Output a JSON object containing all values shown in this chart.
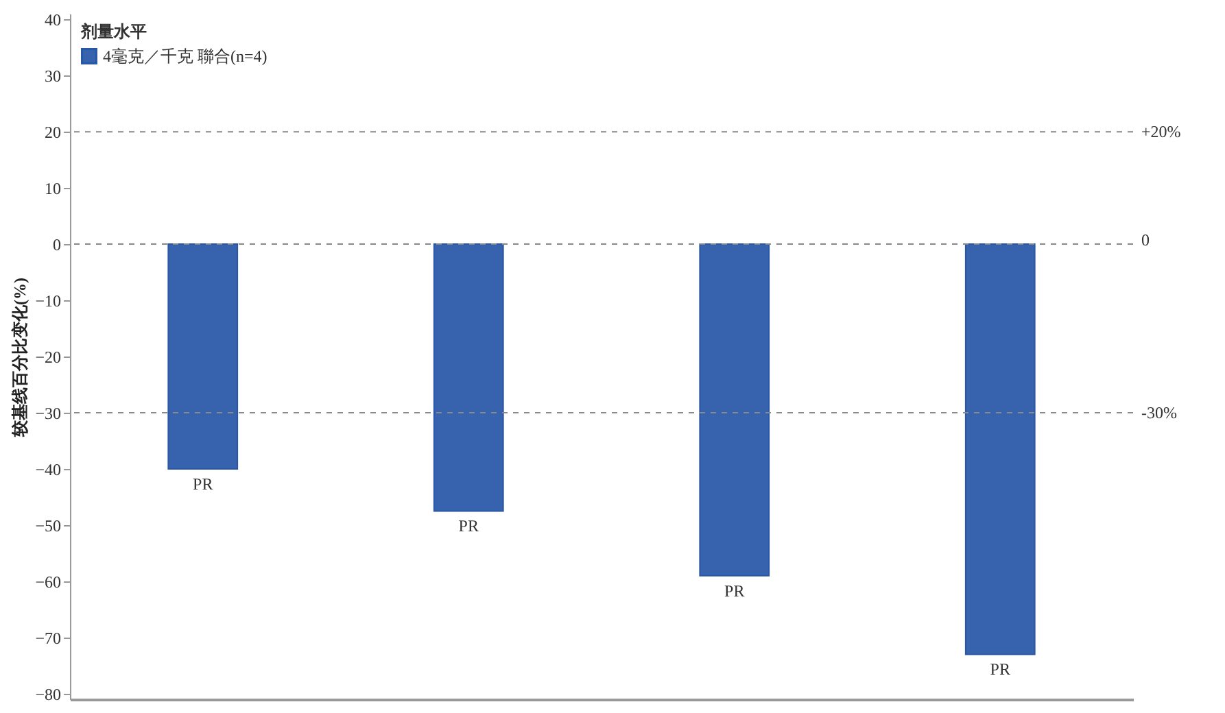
{
  "chart_data": {
    "type": "bar",
    "ylabel": "较基线百分比变化(%)",
    "legend_title": "剂量水平",
    "categories": [
      null,
      null,
      null,
      null
    ],
    "series": [
      {
        "name": "4毫克／千克 聯合(n=4)",
        "color": "#3762ad",
        "values": [
          -40,
          -47.5,
          -59,
          -73
        ],
        "value_labels": [
          "PR",
          "PR",
          "PR",
          "PR"
        ]
      }
    ],
    "ylim": [
      -81,
      41
    ],
    "yticks": [
      -80,
      -70,
      -60,
      -50,
      -40,
      -30,
      -20,
      -10,
      0,
      10,
      20,
      30,
      40
    ],
    "ref_lines": [
      {
        "axis": "y",
        "value": 20,
        "label": "+20%",
        "line_style": "dashed",
        "color": "#888888"
      },
      {
        "axis": "y",
        "value": 0,
        "label": "0",
        "line_style": "dashed",
        "color": "#888888"
      },
      {
        "axis": "y",
        "value": -30,
        "label": "-30%",
        "line_style": "dashed",
        "color": "#888888"
      }
    ],
    "grid": false,
    "legend": "top left",
    "tick_labels": "y"
  }
}
